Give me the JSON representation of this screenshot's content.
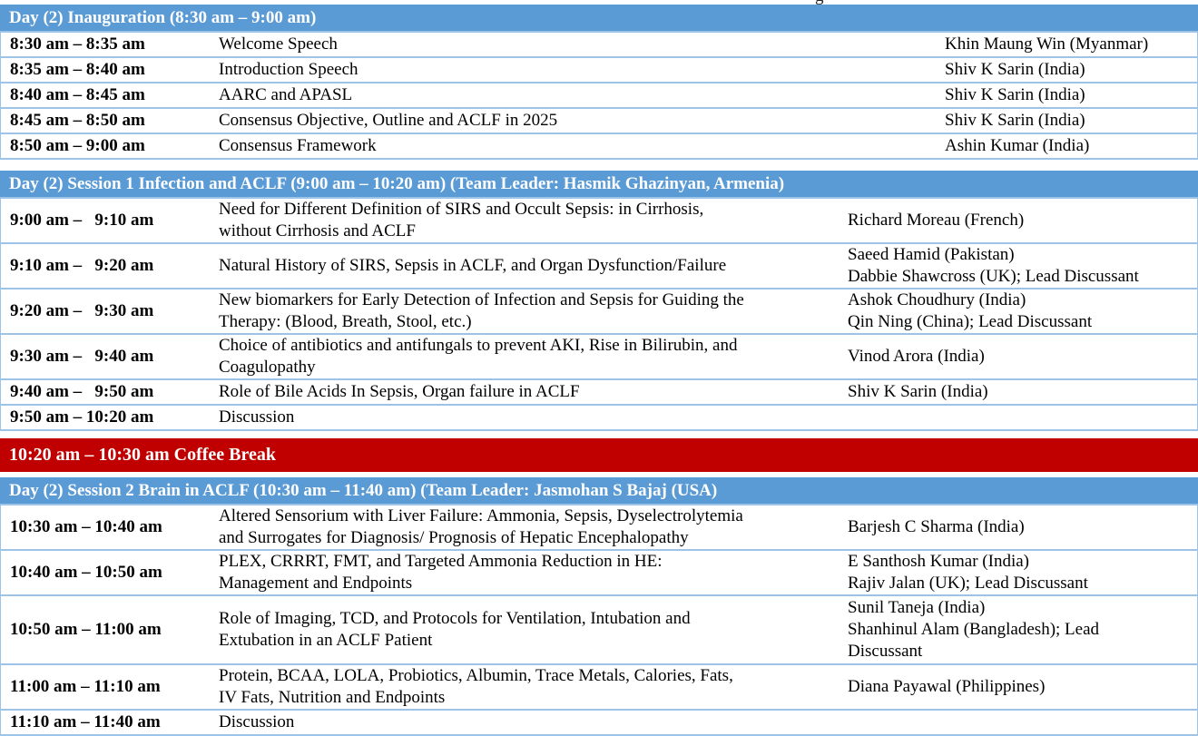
{
  "colors": {
    "session_header_bg": "#5B9BD5",
    "session_header_text": "#FFFFFF",
    "break_bg": "#C00000",
    "break_text": "#FFFFFF",
    "row_divider": "#9DC3E6",
    "body_text": "#000000"
  },
  "top_fragment": "g",
  "sections": [
    {
      "kind": "session",
      "title": "Day (2) Inauguration (8:30 am – 9:00 am)",
      "rows": [
        {
          "time": "8:30 am – 8:35 am",
          "topic": "Welcome Speech",
          "speaker": "Khin Maung Win (Myanmar)"
        },
        {
          "time": "8:35 am – 8:40 am",
          "topic": "Introduction Speech",
          "speaker": "Shiv K Sarin (India)"
        },
        {
          "time": "8:40 am – 8:45 am",
          "topic": "AARC and APASL",
          "speaker": "Shiv K Sarin (India)"
        },
        {
          "time": "8:45 am – 8:50 am",
          "topic": "Consensus Objective, Outline and ACLF in 2025",
          "speaker": "Shiv K Sarin (India)"
        },
        {
          "time": "8:50 am – 9:00 am",
          "topic": "Consensus Framework",
          "speaker": "Ashin Kumar (India)"
        }
      ]
    },
    {
      "kind": "session",
      "title": "Day (2) Session 1 Infection and ACLF (9:00 am – 10:20 am) (Team Leader: Hasmik Ghazinyan, Armenia)",
      "rows": [
        {
          "time": "9:00 am –   9:10 am",
          "topic": "Need for Different Definition of SIRS and Occult Sepsis: in Cirrhosis,\nwithout Cirrhosis and ACLF",
          "speaker": "Richard Moreau (French)"
        },
        {
          "time": "9:10 am –   9:20 am",
          "topic": "Natural History of SIRS, Sepsis in ACLF, and Organ Dysfunction/Failure",
          "speaker": "Saeed Hamid (Pakistan)\nDabbie Shawcross (UK); Lead Discussant"
        },
        {
          "time": "9:20 am –   9:30 am",
          "topic": "New biomarkers for Early Detection of Infection and Sepsis for Guiding the\nTherapy: (Blood, Breath, Stool, etc.)",
          "speaker": "Ashok Choudhury (India)\nQin Ning (China); Lead Discussant"
        },
        {
          "time": "9:30 am –   9:40 am",
          "topic": "Choice of antibiotics and antifungals to prevent AKI, Rise in Bilirubin, and\nCoagulopathy",
          "speaker": "Vinod Arora (India)"
        },
        {
          "time": "9:40 am –   9:50 am",
          "topic": "Role of Bile Acids In Sepsis, Organ failure in ACLF",
          "speaker": "Shiv K Sarin (India)"
        },
        {
          "time": "9:50 am – 10:20 am",
          "topic": "Discussion",
          "speaker": ""
        }
      ]
    },
    {
      "kind": "break",
      "label": "10:20 am – 10:30 am Coffee Break"
    },
    {
      "kind": "session",
      "title": "Day (2) Session 2 Brain in ACLF (10:30 am – 11:40 am) (Team Leader: Jasmohan S Bajaj (USA)",
      "rows": [
        {
          "time": "10:30 am – 10:40 am",
          "topic": "Altered Sensorium with Liver Failure: Ammonia, Sepsis, Dyselectrolytemia\nand Surrogates for Diagnosis/ Prognosis of Hepatic Encephalopathy",
          "speaker": "Barjesh C Sharma (India)"
        },
        {
          "time": "10:40 am – 10:50 am",
          "topic": "PLEX, CRRRT, FMT, and Targeted Ammonia Reduction in HE:\nManagement and Endpoints",
          "speaker": "E Santhosh Kumar (India)\nRajiv Jalan (UK); Lead Discussant"
        },
        {
          "time": "10:50 am – 11:00 am",
          "topic": "Role of Imaging, TCD, and Protocols for Ventilation, Intubation and\nExtubation in an ACLF Patient",
          "speaker": "Sunil Taneja (India)\nShanhinul Alam (Bangladesh); Lead\nDiscussant"
        },
        {
          "time": "11:00 am – 11:10 am",
          "topic": "Protein, BCAA, LOLA, Probiotics, Albumin, Trace Metals, Calories, Fats,\nIV Fats, Nutrition and Endpoints",
          "speaker": "Diana Payawal (Philippines)"
        },
        {
          "time": "11:10 am – 11:40 am",
          "topic": "Discussion",
          "speaker": ""
        }
      ]
    }
  ]
}
